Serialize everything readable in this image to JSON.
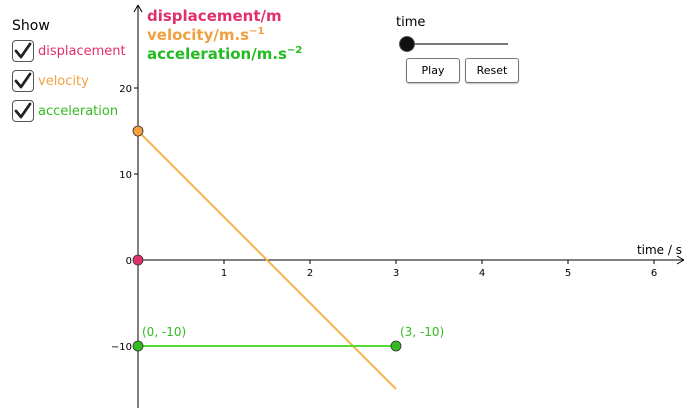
{
  "panel": {
    "show_label": "Show",
    "checkboxes": [
      {
        "label": "displacement",
        "checked": true,
        "color": "#e0306a"
      },
      {
        "label": "velocity",
        "checked": true,
        "color": "#f0a040"
      },
      {
        "label": "acceleration",
        "checked": true,
        "color": "#33bb22"
      }
    ]
  },
  "legend": {
    "displacement": "displacement/m",
    "velocity": "velocity/m.s",
    "velocity_exp": "−1",
    "acceleration": "acceleration/m.s",
    "acceleration_exp": "−2"
  },
  "slider": {
    "label": "time",
    "value": 0
  },
  "buttons": {
    "play": "Play",
    "reset": "Reset"
  },
  "chart_data": {
    "type": "line",
    "xlabel": "time / s",
    "xlim": [
      0,
      6.3
    ],
    "ylim": [
      -17,
      30
    ],
    "x_ticks": [
      1,
      2,
      3,
      4,
      5,
      6
    ],
    "y_ticks": [
      -10,
      0,
      10,
      20
    ],
    "series": [
      {
        "name": "velocity",
        "color": "#f7b34a",
        "points": [
          [
            0,
            15
          ],
          [
            3,
            -15
          ]
        ]
      },
      {
        "name": "acceleration",
        "color": "#55dd33",
        "points": [
          [
            0,
            -10
          ],
          [
            3,
            -10
          ]
        ]
      }
    ],
    "markers": [
      {
        "x": 0,
        "y": 0,
        "color": "#e0306a"
      },
      {
        "x": 0,
        "y": 15,
        "color": "#f7a040"
      },
      {
        "x": 0,
        "y": -10,
        "color": "#33bb22"
      },
      {
        "x": 3,
        "y": -10,
        "color": "#33bb22"
      }
    ],
    "annotations": [
      {
        "text": "(0, -10)",
        "x": 0,
        "y": -10,
        "color": "#33bb22"
      },
      {
        "text": "(3, -10)",
        "x": 3,
        "y": -10,
        "color": "#33bb22"
      }
    ]
  }
}
